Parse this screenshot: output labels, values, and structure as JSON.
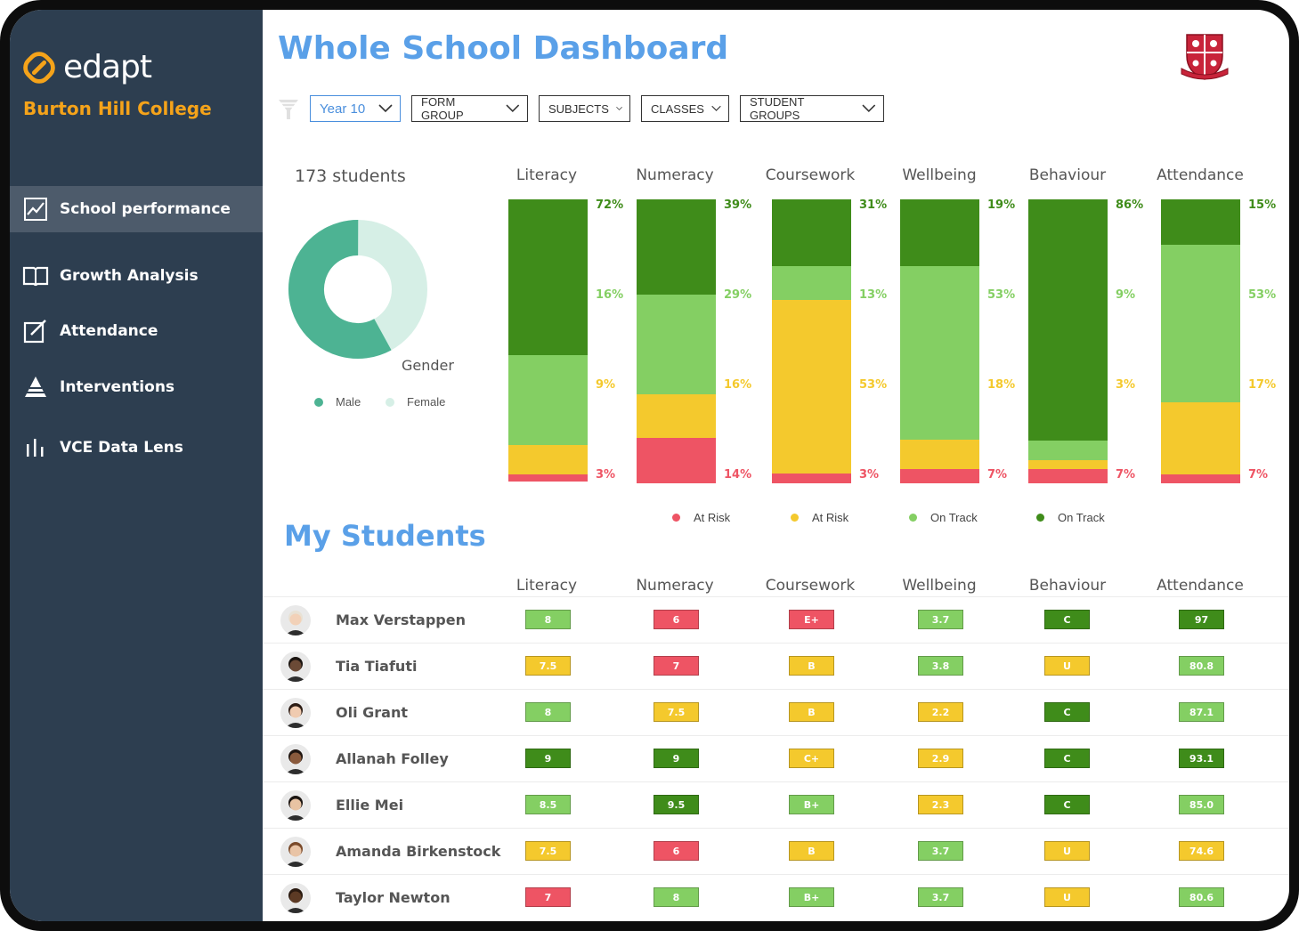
{
  "colors": {
    "sidebar_bg": "#2d3e50",
    "sidebar_active": "#4d5b6b",
    "accent_orange": "#f5a31a",
    "title_blue": "#5aa0e8",
    "dark_green": "#3f8c1a",
    "light_green": "#84cf63",
    "yellow": "#f4c92d",
    "red": "#ee5464",
    "donut_male": "#4db393",
    "donut_female": "#d6efe6"
  },
  "brand": {
    "logo_text": "edapt",
    "school": "Burton Hill College"
  },
  "sidebar": {
    "items": [
      {
        "label": "School performance",
        "icon": "line-chart-icon",
        "active": true
      },
      {
        "label": "Growth Analysis",
        "icon": "open-book-icon",
        "active": false
      },
      {
        "label": "Attendance",
        "icon": "edit-square-icon",
        "active": false
      },
      {
        "label": "Interventions",
        "icon": "pyramid-icon",
        "active": false
      },
      {
        "label": "VCE Data Lens",
        "icon": "bars-icon",
        "active": false
      }
    ]
  },
  "header": {
    "title": "Whole School Dashboard"
  },
  "filters": {
    "year": "Year 10",
    "form_group": "FORM GROUP",
    "subjects": "SUBJECTS",
    "classes": "CLASSES",
    "student_groups": "STUDENT GROUPS"
  },
  "summary": {
    "students": "173 students",
    "gender_label": "Gender",
    "male_label": "Male",
    "female_label": "Female",
    "male_fraction": 0.58
  },
  "chart_data": {
    "type": "bar",
    "stacked": true,
    "categories": [
      "Literacy",
      "Numeracy",
      "Coursework",
      "Wellbeing",
      "Behaviour",
      "Attendance"
    ],
    "series": [
      {
        "name": "On Track",
        "color": "#3f8c1a",
        "values": [
          72,
          39,
          31,
          19,
          86,
          15
        ]
      },
      {
        "name": "On Track",
        "color": "#84cf63",
        "values": [
          16,
          29,
          13,
          53,
          9,
          53
        ]
      },
      {
        "name": "At Risk",
        "color": "#f4c92d",
        "values": [
          9,
          16,
          53,
          18,
          3,
          17
        ]
      },
      {
        "name": "At Risk",
        "color": "#ee5464",
        "values": [
          3,
          14,
          3,
          7,
          7,
          7
        ]
      }
    ],
    "segment_heights_rel": [
      [
        0.55,
        0.315,
        0.105,
        0.025
      ],
      [
        0.335,
        0.35,
        0.155,
        0.16
      ],
      [
        0.235,
        0.12,
        0.61,
        0.035
      ],
      [
        0.235,
        0.61,
        0.105,
        0.05
      ],
      [
        0.85,
        0.07,
        0.03,
        0.05
      ],
      [
        0.16,
        0.555,
        0.255,
        0.03
      ]
    ],
    "legend": [
      {
        "label": "At Risk",
        "color": "#ee5464"
      },
      {
        "label": "At Risk",
        "color": "#f4c92d"
      },
      {
        "label": "On Track",
        "color": "#84cf63"
      },
      {
        "label": "On Track",
        "color": "#3f8c1a"
      }
    ]
  },
  "students_section": {
    "title": "My Students",
    "columns": [
      "Literacy",
      "Numeracy",
      "Coursework",
      "Wellbeing",
      "Behaviour",
      "Attendance"
    ],
    "rows": [
      {
        "name": "Max Verstappen",
        "avatar": "person-avatar-icon",
        "cells": [
          {
            "v": "8",
            "c": "light_green"
          },
          {
            "v": "6",
            "c": "red"
          },
          {
            "v": "E+",
            "c": "red"
          },
          {
            "v": "3.7",
            "c": "light_green"
          },
          {
            "v": "C",
            "c": "dark_green"
          },
          {
            "v": "97",
            "c": "dark_green"
          }
        ]
      },
      {
        "name": "Tia Tiafuti",
        "avatar": "person-avatar-icon",
        "cells": [
          {
            "v": "7.5",
            "c": "yellow"
          },
          {
            "v": "7",
            "c": "red"
          },
          {
            "v": "B",
            "c": "yellow"
          },
          {
            "v": "3.8",
            "c": "light_green"
          },
          {
            "v": "U",
            "c": "yellow"
          },
          {
            "v": "80.8",
            "c": "light_green"
          }
        ]
      },
      {
        "name": "Oli Grant",
        "avatar": "person-avatar-icon",
        "cells": [
          {
            "v": "8",
            "c": "light_green"
          },
          {
            "v": "7.5",
            "c": "yellow"
          },
          {
            "v": "B",
            "c": "yellow"
          },
          {
            "v": "2.2",
            "c": "yellow"
          },
          {
            "v": "C",
            "c": "dark_green"
          },
          {
            "v": "87.1",
            "c": "light_green"
          }
        ]
      },
      {
        "name": "Allanah Folley",
        "avatar": "person-avatar-icon",
        "cells": [
          {
            "v": "9",
            "c": "dark_green"
          },
          {
            "v": "9",
            "c": "dark_green"
          },
          {
            "v": "C+",
            "c": "yellow"
          },
          {
            "v": "2.9",
            "c": "yellow"
          },
          {
            "v": "C",
            "c": "dark_green"
          },
          {
            "v": "93.1",
            "c": "dark_green"
          }
        ]
      },
      {
        "name": "Ellie Mei",
        "avatar": "person-avatar-icon",
        "cells": [
          {
            "v": "8.5",
            "c": "light_green"
          },
          {
            "v": "9.5",
            "c": "dark_green"
          },
          {
            "v": "B+",
            "c": "light_green"
          },
          {
            "v": "2.3",
            "c": "yellow"
          },
          {
            "v": "C",
            "c": "dark_green"
          },
          {
            "v": "85.0",
            "c": "light_green"
          }
        ]
      },
      {
        "name": "Amanda Birkenstock",
        "avatar": "person-avatar-icon",
        "cells": [
          {
            "v": "7.5",
            "c": "yellow"
          },
          {
            "v": "6",
            "c": "red"
          },
          {
            "v": "B",
            "c": "yellow"
          },
          {
            "v": "3.7",
            "c": "light_green"
          },
          {
            "v": "U",
            "c": "yellow"
          },
          {
            "v": "74.6",
            "c": "yellow"
          }
        ]
      },
      {
        "name": "Taylor Newton",
        "avatar": "person-avatar-icon",
        "cells": [
          {
            "v": "7",
            "c": "red"
          },
          {
            "v": "8",
            "c": "light_green"
          },
          {
            "v": "B+",
            "c": "light_green"
          },
          {
            "v": "3.7",
            "c": "light_green"
          },
          {
            "v": "U",
            "c": "yellow"
          },
          {
            "v": "80.6",
            "c": "light_green"
          }
        ]
      }
    ]
  }
}
